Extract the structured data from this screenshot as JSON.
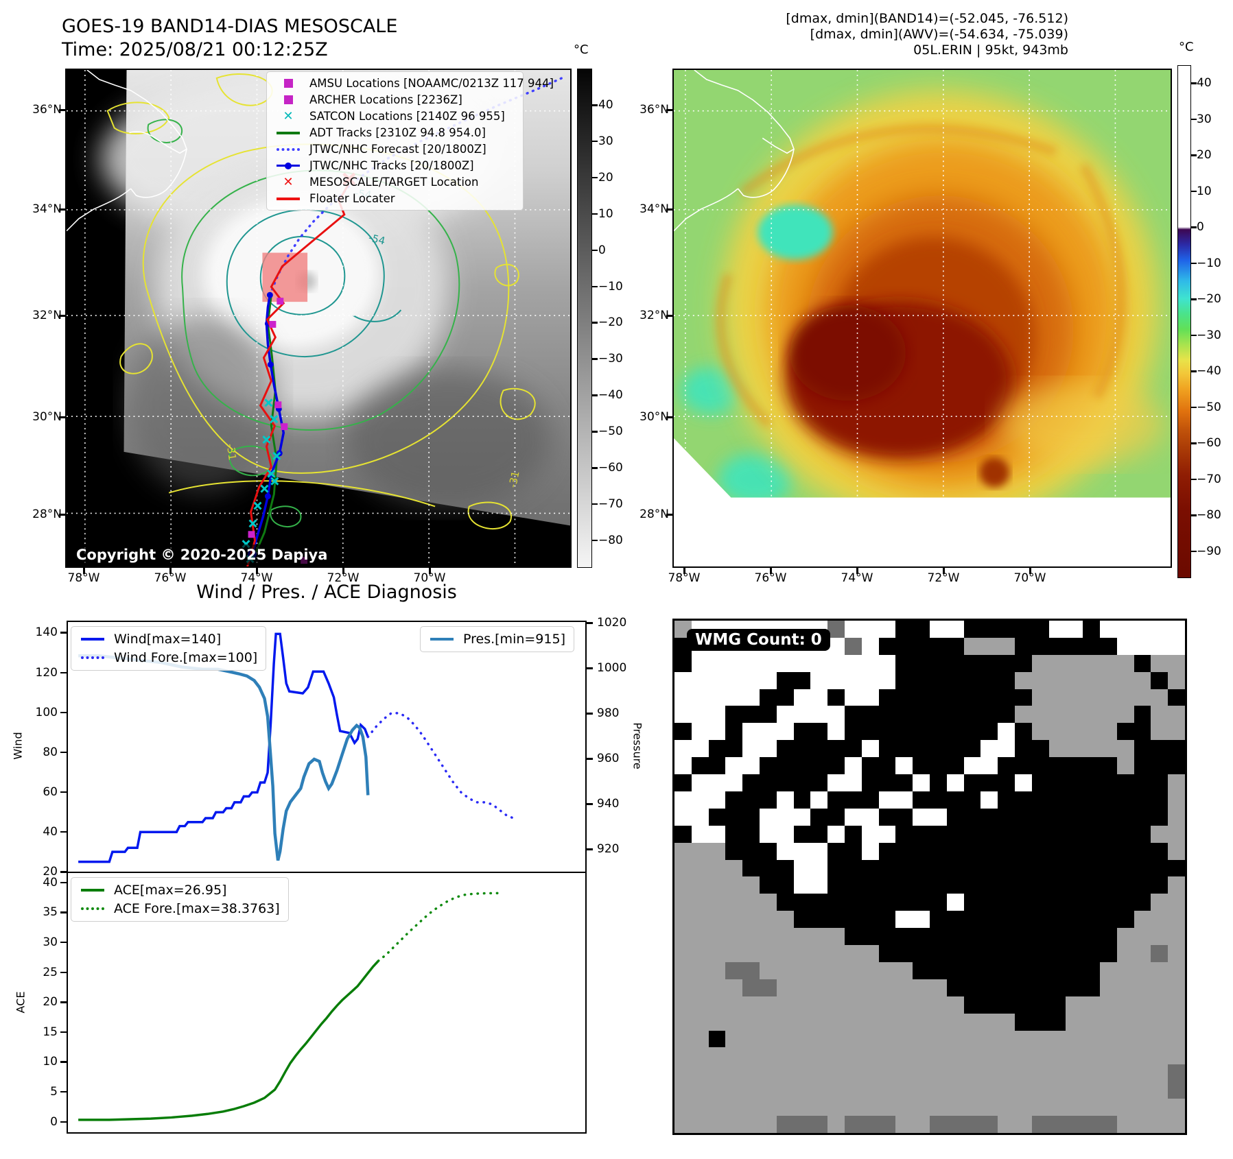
{
  "header": {
    "title_line1": "GOES-19 BAND14-DIAS MESOSCALE",
    "title_line2": "Time: 2025/08/21 00:12:25Z",
    "info_line1": "[dmax, dmin](BAND14)=(-52.045, -76.512)",
    "info_line2": "[dmax, dmin](AWV)=(-54.634, -75.039)",
    "info_line3": "05L.ERIN | 95kt, 943mb"
  },
  "band14_map": {
    "lat_labels": [
      "36°N",
      "34°N",
      "32°N",
      "30°N",
      "28°N"
    ],
    "lon_labels": [
      "78°W",
      "76°W",
      "74°W",
      "72°W",
      "70°W"
    ],
    "colorbar": {
      "unit": "°C",
      "ticks": [
        "40",
        "30",
        "20",
        "10",
        "0",
        "−10",
        "−20",
        "−30",
        "−40",
        "−50",
        "−60",
        "−70",
        "−80"
      ]
    },
    "legend": {
      "items": [
        {
          "marker": "square",
          "color": "#c524c5",
          "label": "AMSU Locations [NOAAMC/0213Z 117 944]"
        },
        {
          "marker": "square",
          "color": "#c524c5",
          "label": "ARCHER Locations [2236Z]"
        },
        {
          "marker": "x",
          "color": "#00b8b8",
          "label": "SATCON Locations [2140Z 96 955]"
        },
        {
          "marker": "line",
          "color": "#0f7a12",
          "label": "ADT Tracks [2310Z 94.8 954.0]"
        },
        {
          "marker": "dotted",
          "color": "#4040ff",
          "label": "JTWC/NHC Forecast [20/1800Z]"
        },
        {
          "marker": "line-dot",
          "color": "#0000e0",
          "label": "JTWC/NHC Tracks [20/1800Z]"
        },
        {
          "marker": "x",
          "color": "#ee1111",
          "label": "MESOSCALE/TARGET Location"
        },
        {
          "marker": "line",
          "color": "#ee1111",
          "label": "Floater Locater"
        }
      ]
    },
    "contour_labels": [
      "-54",
      "-54",
      "-31",
      "-31"
    ],
    "copyright": "Copyright © 2020-2025 Dapiya"
  },
  "awv_map": {
    "lat_labels": [
      "36°N",
      "34°N",
      "32°N",
      "30°N",
      "28°N"
    ],
    "lon_labels": [
      "78°W",
      "76°W",
      "74°W",
      "72°W",
      "70°W"
    ],
    "colorbar": {
      "unit": "°C",
      "ticks": [
        "40",
        "30",
        "20",
        "10",
        "0",
        "−10",
        "−20",
        "−30",
        "−40",
        "−50",
        "−60",
        "−70",
        "−80",
        "−90"
      ]
    }
  },
  "diagnosis": {
    "title": "Wind / Pres. / ACE Diagnosis"
  },
  "wmg": {
    "label": "WMG Count: 0",
    "colors": {
      "k": "#000000",
      "w": "#ffffff",
      "g": "#a2a2a2",
      "d": "#6e6e6e"
    },
    "grid": [
      "gwwwwwwwwdwwwkkwwkkkkkwwkwwwww",
      "kwwwwwwwwwdwkkkkkgggkkkkkkwwww",
      "kwwwwwwwwwwwwkkkkkkkkggggggkgg",
      "wwwwwwkkwwwwwkkkkkkkggggggggkg",
      "wwwwwkkwwkwwkkkkkkkkkggggggggk",
      "wwwkkkwwwwkkkkkkkkkkgggggggkgg",
      "kwwkwwwkkwkkkkkkkkkwkgggggkkgg",
      "wwkkwwkkkkkwkkkkkkwwkkgggggkkk",
      "wkkwwkkkkkwkkwkkkwwkkkkkkkgkkk",
      "kwwwkkkkkwwkkkwkwkkkwkkkkkkkkg",
      "wwwkkkwkwkkkwwkkkkwkkkkkkkkkkg",
      "wwkkkwwwkkwwkkwwkkkkkkkkkkkkkg",
      "kwwkkwwkkwkwwkkkkkkkkkkkkkkkgg",
      "gggkkkwwwkkwkkkkkkkkkkkkkkkkkg",
      "ggggkkkwwkkkkkkkkkkkkkkkkkkkkk",
      "gggggkkwwkkkkkkkkkkkkkkkkkkkkg",
      "ggggggkkkkkkkkkkwkkkkkkkkkkkgg",
      "gggggggkkkkkkwwkkkkkkkkkkkkggg",
      "ggggggggggkkkkkkkkkkkkkkkkgggg",
      "ggggggggggggkkkkkkkkkkkkkkggdg",
      "gggddgggggggggkkkkkkkkkkkggggg",
      "ggggddggggggggggkkkkkkkkkggggg",
      "gggggggggggggggggkkkkkkggggggg",
      "ggggggggggggggggggggkkkggggggg",
      "ggkggggggggggggggggggggggggggg",
      "gggggggggggggggggggggggggggggg",
      "gggggggggggggggggggggggggggggd",
      "gggggggggggggggggggggggggggggd",
      "gggggggggggggggggggggggggggggg",
      "ggggggdddgdddggddddggdddddgggg"
    ]
  },
  "chart_data": [
    {
      "type": "line",
      "title": "Wind / Pres. / ACE Diagnosis",
      "xlabel": "",
      "ylabel": "Wind",
      "y2label": "Pressure",
      "xlim": [
        0,
        100
      ],
      "ylim": [
        20,
        146
      ],
      "y2lim": [
        910,
        1021
      ],
      "yticks": [
        20,
        40,
        60,
        80,
        100,
        120,
        140
      ],
      "y2ticks": [
        920,
        940,
        960,
        980,
        1000,
        1020
      ],
      "grid": false,
      "legend_position": "upper left / upper right",
      "series": [
        {
          "name": "Wind[max=140]",
          "axis": "y1",
          "color": "#0018ee",
          "style": "solid",
          "width": 3.5,
          "points": [
            [
              2,
              25
            ],
            [
              8,
              25
            ],
            [
              8.6,
              30
            ],
            [
              11,
              30
            ],
            [
              11.6,
              32
            ],
            [
              13.4,
              32
            ],
            [
              14,
              40
            ],
            [
              21,
              40
            ],
            [
              21.6,
              43
            ],
            [
              22.6,
              43
            ],
            [
              23.2,
              45
            ],
            [
              26,
              45
            ],
            [
              26.6,
              47
            ],
            [
              28,
              47
            ],
            [
              28.6,
              50
            ],
            [
              30,
              50
            ],
            [
              30.6,
              52
            ],
            [
              31.6,
              52
            ],
            [
              32.2,
              55
            ],
            [
              33.4,
              55
            ],
            [
              34,
              58
            ],
            [
              35,
              58
            ],
            [
              35.6,
              60
            ],
            [
              36.6,
              60
            ],
            [
              37.2,
              65
            ],
            [
              38,
              65
            ],
            [
              38.6,
              70
            ],
            [
              39.2,
              95
            ],
            [
              39.8,
              125
            ],
            [
              40.2,
              140
            ],
            [
              41,
              140
            ],
            [
              41.6,
              128
            ],
            [
              42.2,
              115
            ],
            [
              42.8,
              111
            ],
            [
              45.4,
              110
            ],
            [
              46.4,
              113
            ],
            [
              47.4,
              121
            ],
            [
              49.4,
              121
            ],
            [
              50.4,
              115
            ],
            [
              51.4,
              108
            ],
            [
              52,
              99
            ],
            [
              52.6,
              91
            ],
            [
              54.4,
              90
            ],
            [
              55.4,
              85
            ],
            [
              56,
              87
            ],
            [
              56.6,
              94
            ],
            [
              57.4,
              92
            ],
            [
              58,
              88
            ]
          ]
        },
        {
          "name": "Wind Fore.[max=100]",
          "axis": "y1",
          "color": "#2a2af5",
          "style": "dotted",
          "width": 3.5,
          "points": [
            [
              58,
              88
            ],
            [
              59.5,
              93
            ],
            [
              61,
              97
            ],
            [
              62.5,
              100
            ],
            [
              64,
              100
            ],
            [
              65.5,
              98
            ],
            [
              67,
              94
            ],
            [
              68.5,
              89
            ],
            [
              70,
              83
            ],
            [
              71.5,
              77
            ],
            [
              73,
              71
            ],
            [
              74.5,
              65
            ],
            [
              76,
              60
            ],
            [
              77.5,
              57
            ],
            [
              79,
              55
            ],
            [
              80.5,
              55
            ],
            [
              82,
              54
            ],
            [
              83.5,
              51
            ],
            [
              85,
              48
            ],
            [
              86.2,
              47
            ]
          ]
        },
        {
          "name": "Pres.[min=915]",
          "axis": "y2",
          "color": "#2e7fb8",
          "style": "solid",
          "width": 4.5,
          "points": [
            [
              2,
              1006
            ],
            [
              6,
              1006
            ],
            [
              10,
              1005
            ],
            [
              14,
              1004
            ],
            [
              18,
              1003
            ],
            [
              22,
              1001
            ],
            [
              26,
              1000
            ],
            [
              29,
              1000
            ],
            [
              31,
              999
            ],
            [
              33,
              998
            ],
            [
              34.6,
              997
            ],
            [
              36,
              995
            ],
            [
              37,
              992
            ],
            [
              38,
              987
            ],
            [
              38.6,
              979
            ],
            [
              39,
              967
            ],
            [
              39.6,
              948
            ],
            [
              40,
              927
            ],
            [
              40.6,
              915
            ],
            [
              41,
              919
            ],
            [
              41.6,
              929
            ],
            [
              42.2,
              937
            ],
            [
              43,
              941
            ],
            [
              44,
              944
            ],
            [
              45,
              947
            ],
            [
              45.6,
              952
            ],
            [
              46.6,
              958
            ],
            [
              47.6,
              960
            ],
            [
              48.6,
              959
            ],
            [
              49.2,
              954
            ],
            [
              49.8,
              950
            ],
            [
              50.4,
              947
            ],
            [
              51,
              949
            ],
            [
              52,
              955
            ],
            [
              53,
              962
            ],
            [
              54,
              969
            ],
            [
              55,
              973
            ],
            [
              55.8,
              975
            ],
            [
              56.4,
              974
            ],
            [
              57,
              970
            ],
            [
              57.6,
              961
            ],
            [
              58,
              944
            ]
          ]
        }
      ]
    },
    {
      "type": "line",
      "ylabel": "ACE",
      "xlim": [
        0,
        100
      ],
      "ylim": [
        -2,
        41.8
      ],
      "yticks": [
        0,
        5,
        10,
        15,
        20,
        25,
        30,
        35,
        40
      ],
      "grid": false,
      "legend_position": "upper left",
      "series": [
        {
          "name": "ACE[max=26.95]",
          "axis": "y1",
          "color": "#087d08",
          "style": "solid",
          "width": 3.5,
          "points": [
            [
              2,
              0.1
            ],
            [
              8,
              0.1
            ],
            [
              12,
              0.2
            ],
            [
              16,
              0.3
            ],
            [
              20,
              0.5
            ],
            [
              24,
              0.8
            ],
            [
              27,
              1.1
            ],
            [
              30,
              1.5
            ],
            [
              32,
              1.9
            ],
            [
              34,
              2.4
            ],
            [
              36,
              3.0
            ],
            [
              38,
              3.8
            ],
            [
              39,
              4.5
            ],
            [
              40,
              5.2
            ],
            [
              41,
              6.6
            ],
            [
              42,
              8.2
            ],
            [
              43,
              9.7
            ],
            [
              44,
              10.9
            ],
            [
              45,
              12.0
            ],
            [
              46,
              13.0
            ],
            [
              47,
              14.1
            ],
            [
              48,
              15.2
            ],
            [
              49,
              16.3
            ],
            [
              50,
              17.3
            ],
            [
              51,
              18.4
            ],
            [
              52,
              19.4
            ],
            [
              53,
              20.3
            ],
            [
              54,
              21.1
            ],
            [
              55,
              21.9
            ],
            [
              56,
              22.7
            ],
            [
              57,
              23.8
            ],
            [
              58,
              24.9
            ],
            [
              59,
              26.0
            ],
            [
              60,
              26.95
            ]
          ]
        },
        {
          "name": "ACE Fore.[max=38.3763]",
          "axis": "y1",
          "color": "#0f8a0f",
          "style": "dotted",
          "width": 3.5,
          "points": [
            [
              60,
              26.95
            ],
            [
              61.5,
              28.0
            ],
            [
              63,
              29.3
            ],
            [
              64.5,
              30.6
            ],
            [
              66,
              31.9
            ],
            [
              67.5,
              33.1
            ],
            [
              69,
              34.3
            ],
            [
              70.5,
              35.4
            ],
            [
              72,
              36.3
            ],
            [
              73.5,
              37.1
            ],
            [
              75,
              37.7
            ],
            [
              76.5,
              38.1
            ],
            [
              78.5,
              38.3
            ],
            [
              81,
              38.38
            ],
            [
              83,
              38.4
            ]
          ]
        }
      ]
    }
  ]
}
